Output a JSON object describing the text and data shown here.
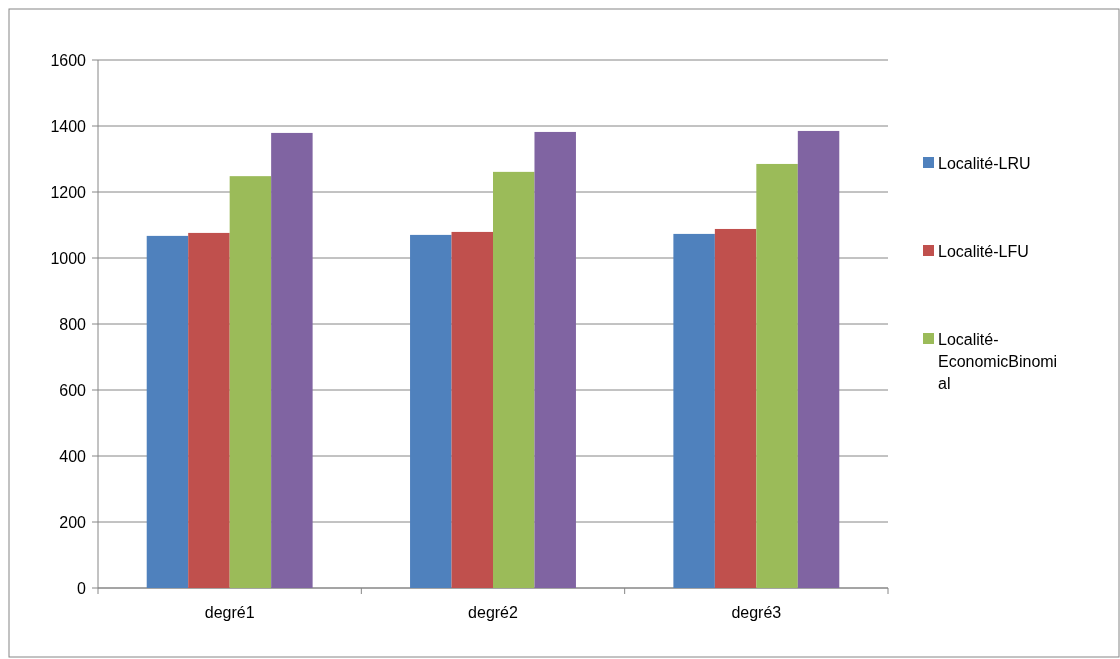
{
  "chart_data": {
    "type": "bar",
    "categories": [
      "degré1",
      "degré2",
      "degré3"
    ],
    "series": [
      {
        "name": "Localité-LRU",
        "color": "#4f81bd",
        "values": [
          1067,
          1070,
          1073
        ]
      },
      {
        "name": "Localité-LFU",
        "color": "#c0504d",
        "values": [
          1076,
          1079,
          1088
        ]
      },
      {
        "name": "Localité-EconomicBinomial",
        "color": "#9bbb59",
        "values": [
          1248,
          1261,
          1285
        ]
      },
      {
        "color": "#8064a2",
        "values": [
          1379,
          1382,
          1385
        ]
      }
    ],
    "ylim": [
      0,
      1600
    ],
    "yticks": [
      0,
      200,
      400,
      600,
      800,
      1000,
      1200,
      1400,
      1600
    ],
    "grid": "y",
    "legend": "right"
  }
}
